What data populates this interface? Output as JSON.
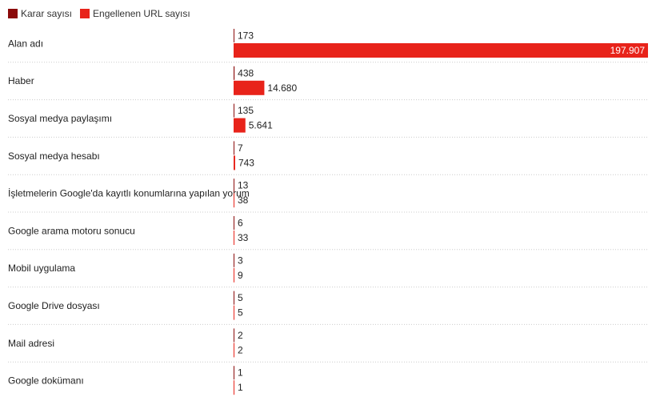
{
  "legend": {
    "series1": "Karar sayısı",
    "series2": "Engellenen URL sayısı"
  },
  "colors": {
    "series1": "#8b0a0a",
    "series2": "#e8231a",
    "grid": "#cccccc",
    "text": "#222222",
    "label_on_bar": "#ffffff"
  },
  "chart_data": {
    "type": "bar",
    "orientation": "horizontal",
    "categories": [
      "Alan adı",
      "Haber",
      "Sosyal medya paylaşımı",
      "Sosyal medya hesabı",
      "İşletmelerin Google'da kayıtlı konumlarına yapılan yorum",
      "Google arama motoru sonucu",
      "Mobil uygulama",
      "Google Drive dosyası",
      "Mail adresi",
      "Google dokümanı"
    ],
    "series": [
      {
        "name": "Karar sayısı",
        "values": [
          173,
          438,
          135,
          7,
          13,
          6,
          3,
          5,
          2,
          1
        ],
        "labels": [
          "173",
          "438",
          "135",
          "7",
          "13",
          "6",
          "3",
          "5",
          "2",
          "1"
        ]
      },
      {
        "name": "Engellenen URL sayısı",
        "values": [
          197907,
          14680,
          5641,
          743,
          38,
          33,
          9,
          5,
          2,
          1
        ],
        "labels": [
          "197.907",
          "14.680",
          "5.641",
          "743",
          "38",
          "33",
          "9",
          "5",
          "2",
          "1"
        ]
      }
    ],
    "xlim": [
      0,
      197907
    ],
    "grid": false,
    "legend_position": "top-left",
    "row_separators": true
  }
}
